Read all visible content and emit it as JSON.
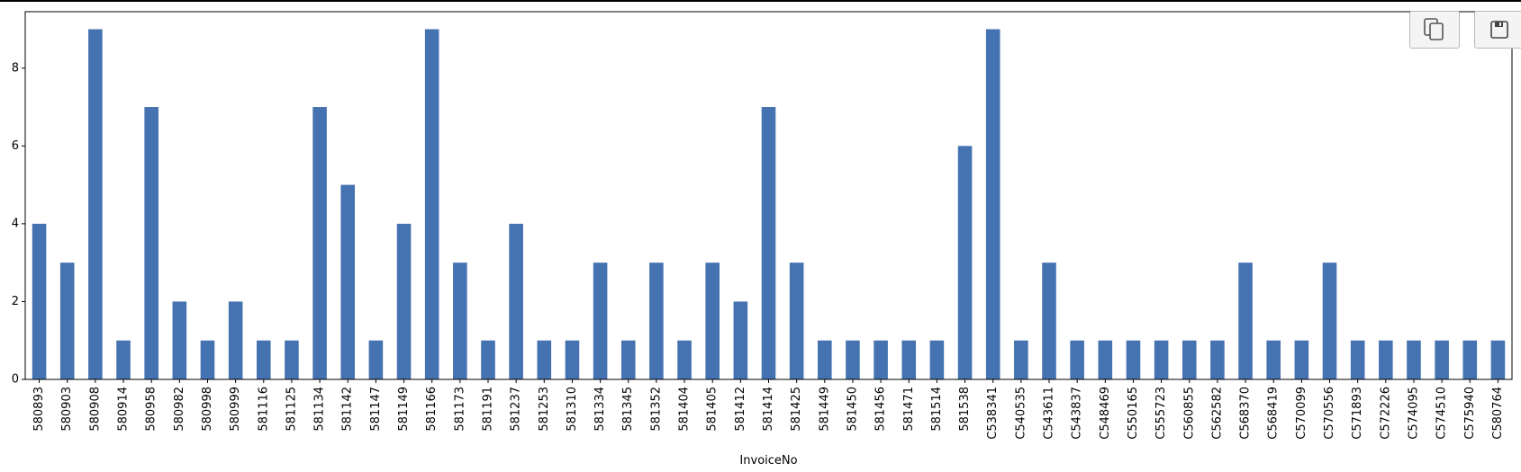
{
  "toolbar": {
    "copy_icon": "copy-icon",
    "save_icon": "floppy-disk-icon"
  },
  "chart_data": {
    "type": "bar",
    "xlabel": "InvoiceNo",
    "ylabel": "",
    "title": "",
    "ylim": [
      0,
      9.45
    ],
    "yticks": [
      0,
      2,
      4,
      6,
      8
    ],
    "grid": false,
    "bar_color": "#4572b0",
    "categories": [
      "580893",
      "580903",
      "580908",
      "580914",
      "580958",
      "580982",
      "580998",
      "580999",
      "581116",
      "581125",
      "581134",
      "581142",
      "581147",
      "581149",
      "581166",
      "581173",
      "581191",
      "581237",
      "581253",
      "581310",
      "581334",
      "581345",
      "581352",
      "581404",
      "581405",
      "581412",
      "581414",
      "581425",
      "581449",
      "581450",
      "581456",
      "581471",
      "581514",
      "581538",
      "C538341",
      "C540535",
      "C543611",
      "C543837",
      "C548469",
      "C550165",
      "C555723",
      "C560855",
      "C562582",
      "C568370",
      "C568419",
      "C570099",
      "C570556",
      "C571893",
      "C572226",
      "C574095",
      "C574510",
      "C575940",
      "C580764"
    ],
    "values": [
      4,
      3,
      9,
      1,
      7,
      2,
      1,
      2,
      1,
      1,
      7,
      5,
      1,
      4,
      9,
      3,
      1,
      4,
      1,
      1,
      3,
      1,
      3,
      1,
      3,
      2,
      7,
      3,
      1,
      1,
      1,
      1,
      1,
      6,
      9,
      1,
      3,
      1,
      1,
      1,
      1,
      1,
      1,
      3,
      1,
      1,
      3,
      1,
      1,
      1,
      1,
      1,
      1
    ]
  }
}
